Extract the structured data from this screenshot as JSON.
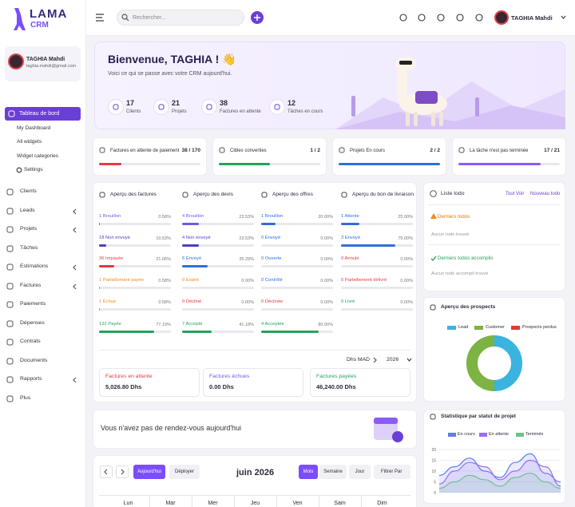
{
  "sidebar": {
    "logo": "LAMA",
    "logo_sub": "CRM",
    "user": {
      "name": "TAGHIA Mahdi",
      "email": "taghia.mahdi@gmail.com"
    },
    "active": "Tableau de bord",
    "submenu": [
      "My Dashboard",
      "All widgets",
      "Widget categories",
      "Settings"
    ],
    "menu": [
      {
        "label": "Clients",
        "has_submenu": false
      },
      {
        "label": "Leads",
        "has_submenu": true
      },
      {
        "label": "Projets",
        "has_submenu": true
      },
      {
        "label": "Tâches",
        "has_submenu": false
      },
      {
        "label": "Estimations",
        "has_submenu": true
      },
      {
        "label": "Factures",
        "has_submenu": true
      },
      {
        "label": "Paiements",
        "has_submenu": false
      },
      {
        "label": "Dépenses",
        "has_submenu": false
      },
      {
        "label": "Contrats",
        "has_submenu": false
      },
      {
        "label": "Documents",
        "has_submenu": false
      },
      {
        "label": "Rapports",
        "has_submenu": true
      },
      {
        "label": "Plus",
        "has_submenu": false
      }
    ]
  },
  "topbar": {
    "search_placeholder": "Rechercher...",
    "user_name": "TAGHIA Mahdi"
  },
  "welcome": {
    "title": "Bienvenue, TAGHIA ! 👋",
    "subtitle": "Voici ce qui se passe avec votre CRM aujourd'hui.",
    "stats": [
      {
        "value": 17,
        "label": "Clients"
      },
      {
        "value": 21,
        "label": "Projets"
      },
      {
        "value": 38,
        "label": "Factures en attente"
      },
      {
        "value": 12,
        "label": "Tâches en cours"
      }
    ]
  },
  "progress_cards": [
    {
      "label": "Factures en attente de paiement",
      "text": "38 / 170",
      "count": 38,
      "total": 170,
      "color": "#e53945"
    },
    {
      "label": "Cibles converties",
      "text": "1 / 2",
      "count": 1,
      "total": 2,
      "color": "#22a35a"
    },
    {
      "label": "Projets En cours",
      "text": "2 / 2",
      "count": 2,
      "total": 2,
      "color": "#2f6fdc"
    },
    {
      "label": "La tâche n'est pas terminée",
      "text": "17 / 21",
      "count": 17,
      "total": 21,
      "color": "#8b5cf6"
    }
  ],
  "overview": {
    "columns": [
      {
        "title": "Aperçu des factures",
        "rows": [
          {
            "label": "1 Brouillon",
            "percent": 0.58,
            "percent_label": "0.58%",
            "color": "#6b5ce7"
          },
          {
            "label": "18 Non envoyé",
            "percent": 10.53,
            "percent_label": "10.53%",
            "color": "#4b3fc4"
          },
          {
            "label": "36 Impayée",
            "percent": 21.05,
            "percent_label": "21.05%",
            "color": "#e53945"
          },
          {
            "label": "1 Partiellement payée",
            "percent": 0.58,
            "percent_label": "0.58%",
            "color": "#f08c1a"
          },
          {
            "label": "1 Échue",
            "percent": 0.58,
            "percent_label": "0.58%",
            "color": "#f08c1a"
          },
          {
            "label": "132 Payée",
            "percent": 77.19,
            "percent_label": "77.19%",
            "color": "#22a35a"
          }
        ]
      },
      {
        "title": "Aperçu des devis",
        "rows": [
          {
            "label": "4 Brouillon",
            "percent": 23.53,
            "percent_label": "23.53%",
            "color": "#6b5ce7"
          },
          {
            "label": "4 Non envoyé",
            "percent": 23.53,
            "percent_label": "23.53%",
            "color": "#4b3fc4"
          },
          {
            "label": "6 Envoyé",
            "percent": 35.29,
            "percent_label": "35.29%",
            "color": "#2f6fdc"
          },
          {
            "label": "0 Expiré",
            "percent": 0.0,
            "percent_label": "0.00%",
            "color": "#f08c1a"
          },
          {
            "label": "0 Décliné",
            "percent": 0.0,
            "percent_label": "0.00%",
            "color": "#e53945"
          },
          {
            "label": "7 Accepté",
            "percent": 41.18,
            "percent_label": "41.18%",
            "color": "#22a35a"
          }
        ]
      },
      {
        "title": "Aperçu des offres",
        "rows": [
          {
            "label": "1 Brouillon",
            "percent": 20.0,
            "percent_label": "20.00%",
            "color": "#2f6fdc"
          },
          {
            "label": "0 Envoyé",
            "percent": 0.0,
            "percent_label": "0.00%",
            "color": "#2f6fdc"
          },
          {
            "label": "0 Ouverte",
            "percent": 0.0,
            "percent_label": "0.00%",
            "color": "#2f6fdc"
          },
          {
            "label": "0 Contrôlé",
            "percent": 0.0,
            "percent_label": "0.00%",
            "color": "#2f6fdc"
          },
          {
            "label": "0 Déclinée",
            "percent": 0.0,
            "percent_label": "0.00%",
            "color": "#e53945"
          },
          {
            "label": "4 Acceptée",
            "percent": 80.0,
            "percent_label": "80.00%",
            "color": "#22a35a"
          }
        ]
      },
      {
        "title": "Aperçu du bon de livraison",
        "rows": [
          {
            "label": "1 Attente",
            "percent": 25.0,
            "percent_label": "25.00%",
            "color": "#2f6fdc"
          },
          {
            "label": "3 Envoyé",
            "percent": 75.0,
            "percent_label": "75.00%",
            "color": "#2f6fdc"
          },
          {
            "label": "0 Annulé",
            "percent": 0.0,
            "percent_label": "0.00%",
            "color": "#e53945"
          },
          {
            "label": "0 Partiellement délivré",
            "percent": 0.0,
            "percent_label": "0.00%",
            "color": "#e53945"
          },
          {
            "label": "0 Livré",
            "percent": 0.0,
            "percent_label": "0.00%",
            "color": "#22a35a"
          }
        ]
      }
    ],
    "currency": "Dhs MAD",
    "year": "2026",
    "totals": [
      {
        "label": "Factures en attente",
        "amount": "5,026.80 Dhs",
        "color": "#e53945"
      },
      {
        "label": "Factures échues",
        "amount": "0.00 Dhs",
        "color": "#6b5ce7"
      },
      {
        "label": "Factures payées",
        "amount": "46,240.00 Dhs",
        "color": "#22a35a"
      }
    ]
  },
  "todo": {
    "title": "Liste todo",
    "view_all": "Tout Voir",
    "new": "Nouveau todo",
    "latest": "Derniers todos",
    "latest_empty": "Aucun todo trouvé",
    "done": "Derniers todos accomplis",
    "done_empty": "Aucun todo accompli trouvé"
  },
  "prospects": {
    "title": "Aperçu des prospects",
    "series": [
      {
        "name": "Lead",
        "color": "#3bb3df",
        "value": 50
      },
      {
        "name": "Customer",
        "color": "#7cb342",
        "value": 50
      },
      {
        "name": "Prospects perdus",
        "color": "#e53935",
        "value": 0
      }
    ]
  },
  "appointments": {
    "text": "Vous n'avez pas de rendez-vous aujourd'hui"
  },
  "calendar": {
    "today": "Aujourd'hui",
    "deploy": "Déployer",
    "month_title": "juin 2026",
    "views": [
      "Mois",
      "Semaine",
      "Jour"
    ],
    "filter": "Filtrer Par",
    "days": [
      "Lun",
      "Mar",
      "Mer",
      "Jeu",
      "Ven",
      "Sam",
      "Dim"
    ]
  },
  "project_stats": {
    "title": "Statistique par statut de projet",
    "ylim": [
      0,
      20
    ],
    "yticks": [
      0,
      5,
      10,
      15,
      20
    ],
    "series": [
      {
        "name": "En cours",
        "color": "#5b7cf0",
        "values": [
          8,
          12,
          16,
          10,
          7,
          14,
          18,
          9,
          5
        ]
      },
      {
        "name": "En attente",
        "color": "#9b6cf0",
        "values": [
          4,
          10,
          14,
          12,
          6,
          10,
          15,
          12,
          3
        ]
      },
      {
        "name": "Terminés",
        "color": "#6cc38a",
        "values": [
          2,
          5,
          8,
          6,
          3,
          7,
          9,
          5,
          2
        ]
      }
    ]
  }
}
